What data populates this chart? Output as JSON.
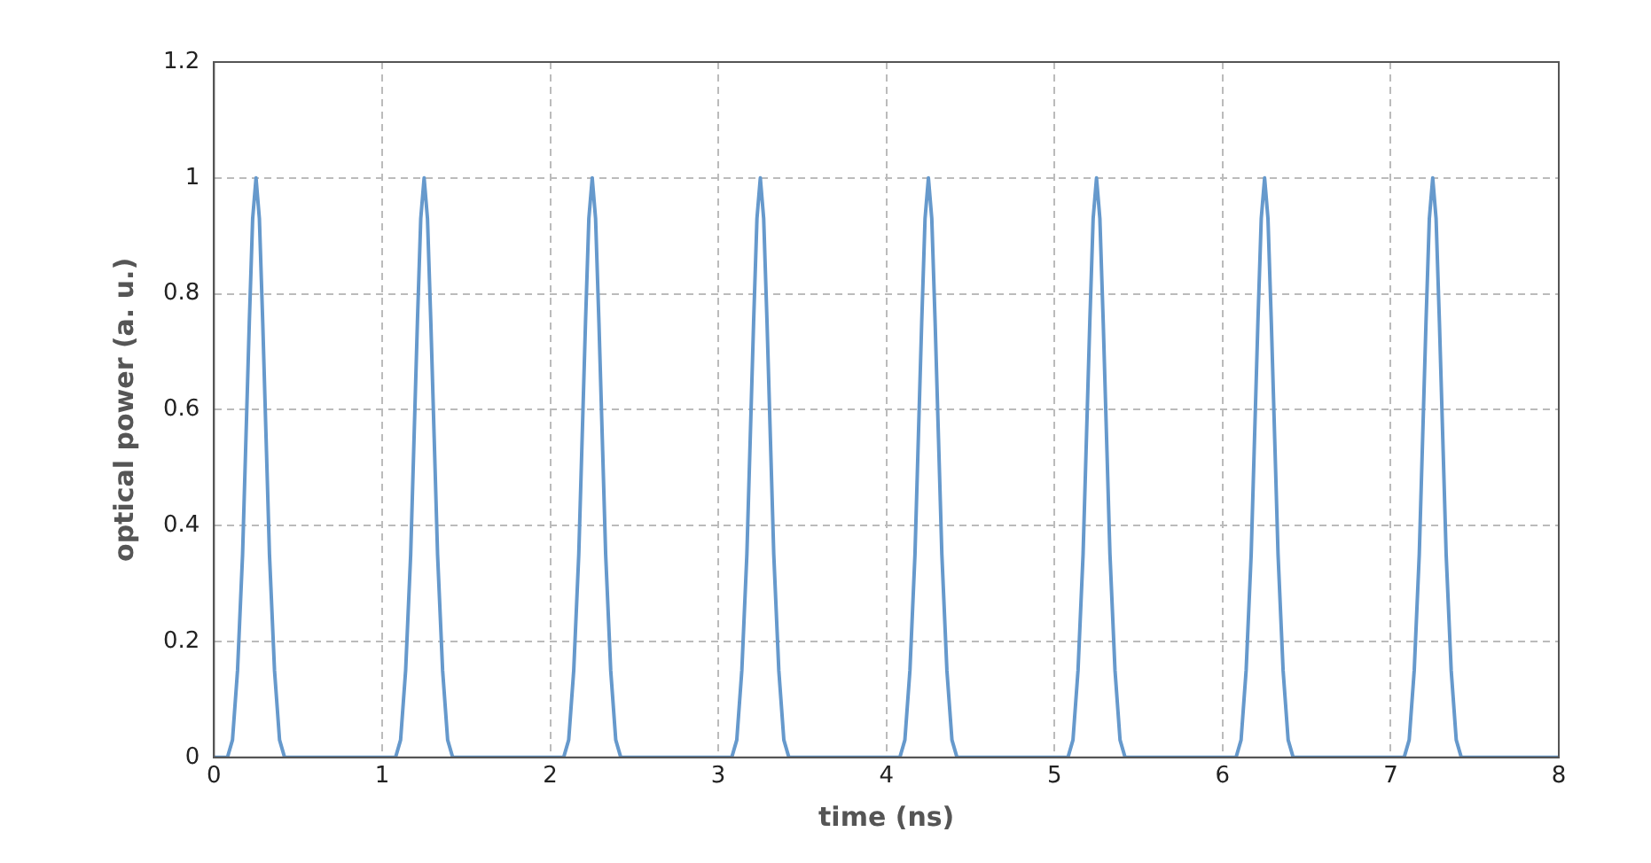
{
  "chart_data": {
    "type": "line",
    "xlabel": "time (ns)",
    "ylabel": "optical power (a. u.)",
    "xlim": [
      0,
      8
    ],
    "ylim": [
      0,
      1.2
    ],
    "xticks": [
      0,
      1,
      2,
      3,
      4,
      5,
      6,
      7,
      8
    ],
    "yticks": [
      0,
      0.2,
      0.4,
      0.6,
      0.8,
      1,
      1.2
    ],
    "grid": true,
    "legend": false,
    "marker": "none",
    "line_style": "solid",
    "series": [
      {
        "color": "#6699cc",
        "x": [
          0,
          0.08,
          0.11,
          0.14,
          0.17,
          0.19,
          0.21,
          0.23,
          0.25,
          0.27,
          0.29,
          0.31,
          0.33,
          0.36,
          0.39,
          0.42,
          1.08,
          1.11,
          1.14,
          1.17,
          1.19,
          1.21,
          1.23,
          1.25,
          1.27,
          1.29,
          1.31,
          1.33,
          1.36,
          1.39,
          1.42,
          2.08,
          2.11,
          2.14,
          2.17,
          2.19,
          2.21,
          2.23,
          2.25,
          2.27,
          2.29,
          2.31,
          2.33,
          2.36,
          2.39,
          2.42,
          3.08,
          3.11,
          3.14,
          3.17,
          3.19,
          3.21,
          3.23,
          3.25,
          3.27,
          3.29,
          3.31,
          3.33,
          3.36,
          3.39,
          3.42,
          4.08,
          4.11,
          4.14,
          4.17,
          4.19,
          4.21,
          4.23,
          4.25,
          4.27,
          4.29,
          4.31,
          4.33,
          4.36,
          4.39,
          4.42,
          5.08,
          5.11,
          5.14,
          5.17,
          5.19,
          5.21,
          5.23,
          5.25,
          5.27,
          5.29,
          5.31,
          5.33,
          5.36,
          5.39,
          5.42,
          6.08,
          6.11,
          6.14,
          6.17,
          6.19,
          6.21,
          6.23,
          6.25,
          6.27,
          6.29,
          6.31,
          6.33,
          6.36,
          6.39,
          6.42,
          7.08,
          7.11,
          7.14,
          7.17,
          7.19,
          7.21,
          7.23,
          7.25,
          7.27,
          7.29,
          7.31,
          7.33,
          7.36,
          7.39,
          7.42,
          8
        ],
        "values": [
          0,
          0,
          0.03,
          0.15,
          0.35,
          0.55,
          0.75,
          0.93,
          1,
          0.93,
          0.75,
          0.55,
          0.35,
          0.15,
          0.03,
          0,
          0,
          0.03,
          0.15,
          0.35,
          0.55,
          0.75,
          0.93,
          1,
          0.93,
          0.75,
          0.55,
          0.35,
          0.15,
          0.03,
          0,
          0,
          0.03,
          0.15,
          0.35,
          0.55,
          0.75,
          0.93,
          1,
          0.93,
          0.75,
          0.55,
          0.35,
          0.15,
          0.03,
          0,
          0,
          0.03,
          0.15,
          0.35,
          0.55,
          0.75,
          0.93,
          1,
          0.93,
          0.75,
          0.55,
          0.35,
          0.15,
          0.03,
          0,
          0,
          0.03,
          0.15,
          0.35,
          0.55,
          0.75,
          0.93,
          1,
          0.93,
          0.75,
          0.55,
          0.35,
          0.15,
          0.03,
          0,
          0,
          0.03,
          0.15,
          0.35,
          0.55,
          0.75,
          0.93,
          1,
          0.93,
          0.75,
          0.55,
          0.35,
          0.15,
          0.03,
          0,
          0,
          0.03,
          0.15,
          0.35,
          0.55,
          0.75,
          0.93,
          1,
          0.93,
          0.75,
          0.55,
          0.35,
          0.15,
          0.03,
          0,
          0,
          0.03,
          0.15,
          0.35,
          0.55,
          0.75,
          0.93,
          1,
          0.93,
          0.75,
          0.55,
          0.35,
          0.15,
          0.03,
          0,
          0
        ]
      }
    ]
  }
}
